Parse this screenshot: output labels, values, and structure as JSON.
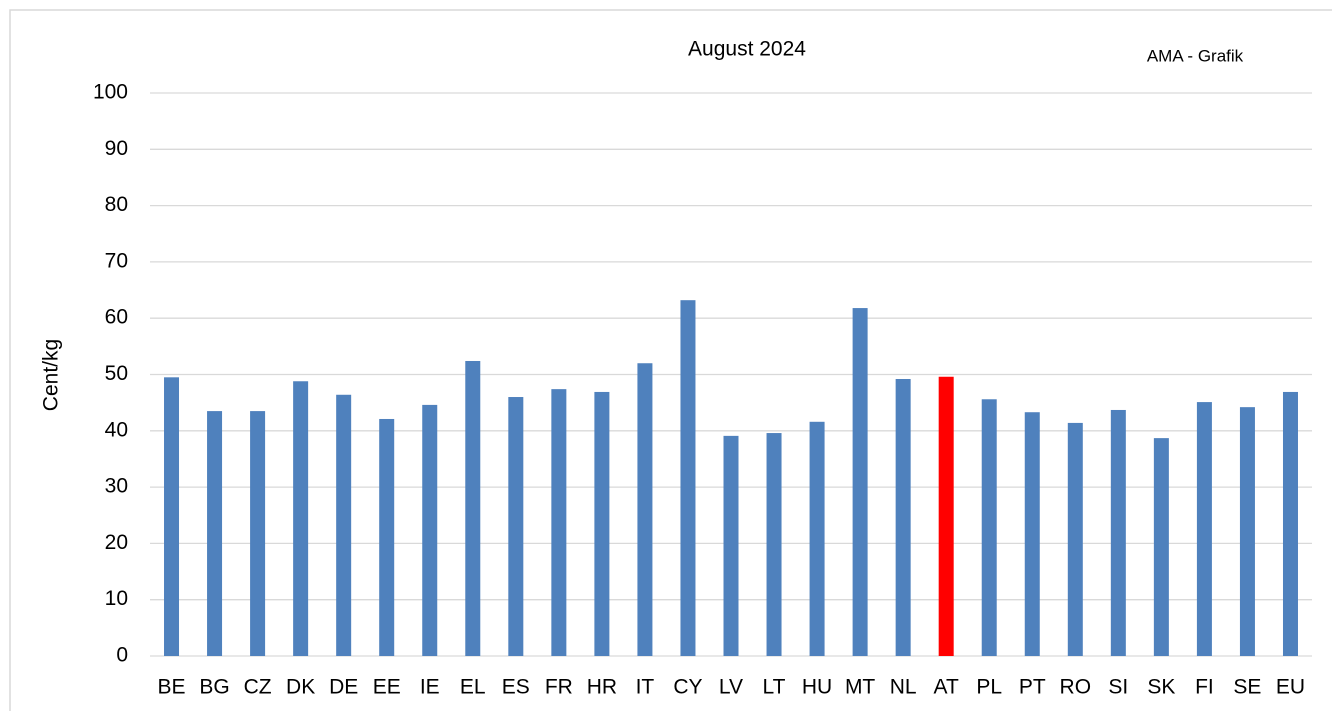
{
  "chart_data": {
    "type": "bar",
    "title": "August 2024",
    "annotation": "AMA - Grafik",
    "y_label": "Cent/kg",
    "categories": [
      "BE",
      "BG",
      "CZ",
      "DK",
      "DE",
      "EE",
      "IE",
      "EL",
      "ES",
      "FR",
      "HR",
      "IT",
      "CY",
      "LV",
      "LT",
      "HU",
      "MT",
      "NL",
      "AT",
      "PL",
      "PT",
      "RO",
      "SI",
      "SK",
      "FI",
      "SE",
      "EU"
    ],
    "values": [
      49.5,
      43.5,
      43.5,
      48.8,
      46.4,
      42.1,
      44.6,
      52.4,
      46,
      47.4,
      46.9,
      52,
      63.2,
      39.1,
      39.6,
      41.6,
      61.8,
      49.2,
      49.6,
      45.6,
      43.3,
      41.4,
      43.7,
      38.7,
      45.1,
      44.2,
      46.9
    ],
    "colors": [
      "#4f81bd",
      "#4f81bd",
      "#4f81bd",
      "#4f81bd",
      "#4f81bd",
      "#4f81bd",
      "#4f81bd",
      "#4f81bd",
      "#4f81bd",
      "#4f81bd",
      "#4f81bd",
      "#4f81bd",
      "#4f81bd",
      "#4f81bd",
      "#4f81bd",
      "#4f81bd",
      "#4f81bd",
      "#4f81bd",
      "#ff0000",
      "#4f81bd",
      "#4f81bd",
      "#4f81bd",
      "#4f81bd",
      "#4f81bd",
      "#4f81bd",
      "#4f81bd",
      "#4f81bd"
    ],
    "ylim": [
      0,
      100
    ],
    "yticks": [
      0,
      10,
      20,
      30,
      40,
      50,
      60,
      70,
      80,
      90,
      100
    ],
    "grid": true
  }
}
